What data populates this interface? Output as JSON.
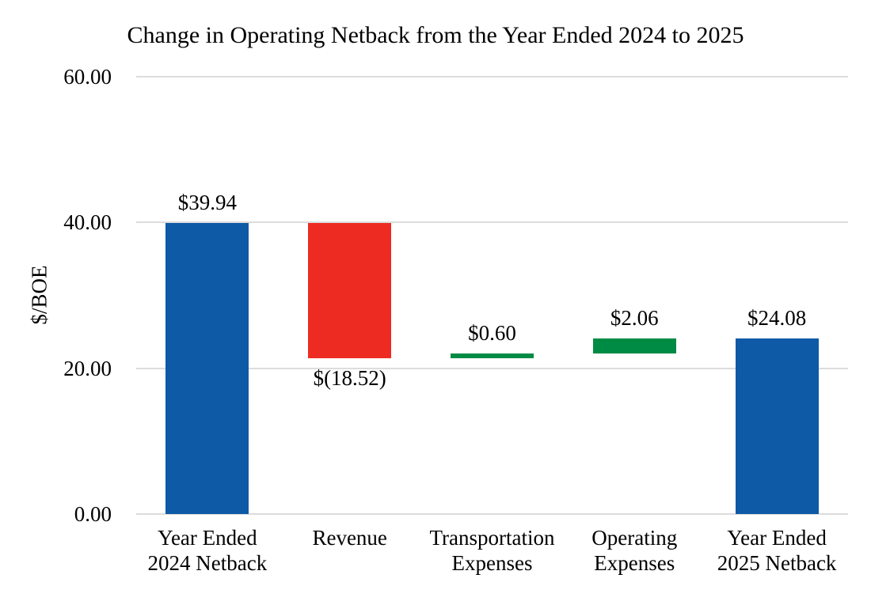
{
  "chart_data": {
    "type": "bar",
    "subtype": "waterfall",
    "title": "Change in Operating Netback from the Year Ended 2024 to 2025",
    "xlabel": "",
    "ylabel": "$/BOE",
    "ylim": [
      0,
      60
    ],
    "grid": true,
    "legend": false,
    "yticks": [
      {
        "value": 0,
        "label": "0.00"
      },
      {
        "value": 20,
        "label": "20.00"
      },
      {
        "value": 40,
        "label": "40.00"
      },
      {
        "value": 60,
        "label": "60.00"
      }
    ],
    "categories": [
      "Year Ended 2024 Netback",
      "Revenue",
      "Transportation Expenses",
      "Operating Expenses",
      "Year Ended 2025 Netback"
    ],
    "bars": [
      {
        "category_lines": [
          "Year Ended",
          "2024 Netback"
        ],
        "base": 0,
        "end": 39.94,
        "change": 39.94,
        "label": "$39.94",
        "label_position": "above",
        "role": "total"
      },
      {
        "category_lines": [
          "Revenue"
        ],
        "base": 21.42,
        "end": 39.94,
        "change": -18.52,
        "label": "$(18.52)",
        "label_position": "below",
        "role": "decrease"
      },
      {
        "category_lines": [
          "Transportation",
          "Expenses"
        ],
        "base": 21.42,
        "end": 22.02,
        "change": 0.6,
        "label": "$0.60",
        "label_position": "above",
        "role": "increase"
      },
      {
        "category_lines": [
          "Operating",
          "Expenses"
        ],
        "base": 22.02,
        "end": 24.08,
        "change": 2.06,
        "label": "$2.06",
        "label_position": "above",
        "role": "increase"
      },
      {
        "category_lines": [
          "Year Ended",
          "2025 Netback"
        ],
        "base": 0,
        "end": 24.08,
        "change": 24.08,
        "label": "$24.08",
        "label_position": "above",
        "role": "total"
      }
    ],
    "colors": {
      "total": "#0E5AA6",
      "decrease": "#EE2B23",
      "increase": "#008B45",
      "gridline": "#DCDCDC",
      "text": "#000000",
      "background": "#FFFFFF"
    }
  }
}
